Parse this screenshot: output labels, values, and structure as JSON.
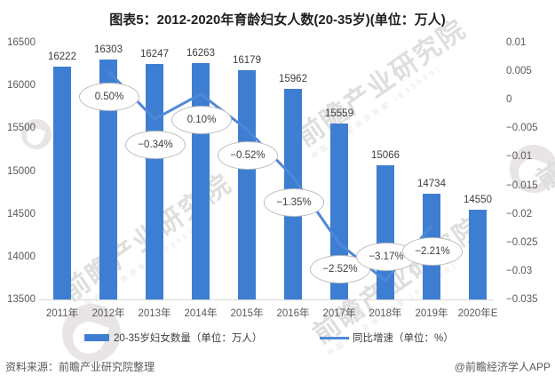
{
  "title": "图表5：2012-2020年育龄妇女人数(20-35岁)(单位：万人)",
  "footer": {
    "source": "资料来源：前瞻产业研究院整理",
    "credit": "@前瞻经济学人APP"
  },
  "watermark": {
    "main": "前瞻产业研究院",
    "sub": "中国产业咨询领导者（839599）"
  },
  "legend": {
    "items": [
      {
        "label": "20-35岁妇女数量（单位：万人）",
        "swatch": "bar"
      },
      {
        "label": "同比增速（单位：%）",
        "swatch": "line"
      }
    ]
  },
  "colors": {
    "bar": "#3e7ed2",
    "line": "#4f88d8",
    "axis_text": "#595959",
    "bubble_border": "#bdbdbd",
    "baseline": "#d6d6d6"
  },
  "chart_data": {
    "type": "bar",
    "subtype": "bar-line-combo",
    "title": "图表5：2012-2020年育龄妇女人数(20-35岁)(单位：万人)",
    "categories": [
      "2011年",
      "2012年",
      "2013年",
      "2014年",
      "2015年",
      "2016年",
      "2017年",
      "2018年",
      "2019年",
      "2020年E"
    ],
    "series": [
      {
        "name": "20-35岁妇女数量（单位：万人）",
        "type": "bar",
        "axis": "left",
        "values": [
          16222,
          16303,
          16247,
          16263,
          16179,
          15962,
          15559,
          15066,
          14734,
          14550
        ]
      },
      {
        "name": "同比增速（单位：%）",
        "type": "line",
        "axis": "right",
        "values": [
          null,
          0.005,
          -0.0034,
          0.001,
          -0.0052,
          -0.0135,
          -0.0252,
          -0.0317,
          -0.0221,
          null
        ],
        "point_labels": [
          null,
          "0.50%",
          "−0.34%",
          "0.10%",
          "−0.52%",
          "−1.35%",
          "−2.52%",
          "−3.17%",
          "−2.21%",
          null
        ],
        "label_side": [
          null,
          "below",
          "below",
          "below",
          "below",
          "below",
          "below",
          "above",
          "below",
          null
        ]
      }
    ],
    "left_axis": {
      "min": 13500,
      "max": 16500,
      "step": 500,
      "ticks": [
        16500,
        16000,
        15500,
        15000,
        14500,
        14000,
        13500
      ]
    },
    "right_axis": {
      "min": -0.035,
      "max": 0.01,
      "step": 0.005,
      "ticks": [
        0.01,
        0.005,
        0,
        -0.005,
        -0.01,
        -0.015,
        -0.02,
        -0.025,
        -0.03,
        -0.035
      ]
    },
    "grid": false,
    "legend_position": "bottom"
  }
}
